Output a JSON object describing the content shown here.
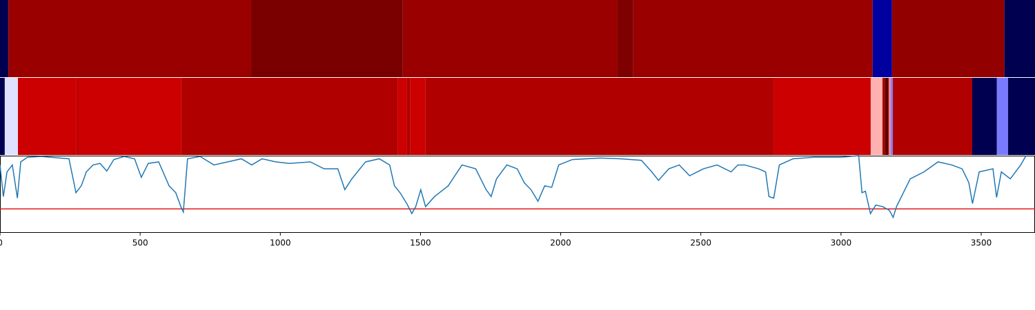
{
  "chart_data": [
    {
      "type": "strip",
      "xlim": [
        0,
        3692
      ],
      "edges": [
        0,
        30,
        896,
        1437,
        2203,
        2259,
        3113,
        3182,
        3583,
        3692
      ],
      "colors": [
        "#000050",
        "#9b0000",
        "#7a0000",
        "#9b0000",
        "#7e0000",
        "#9b0000",
        "#0000a0",
        "#920000",
        "#000050"
      ]
    },
    {
      "type": "strip",
      "xlim": [
        0,
        3692
      ],
      "edges": [
        0,
        17,
        64,
        271,
        283,
        647,
        1418,
        1452,
        1464,
        1518,
        2759,
        3106,
        3148,
        3157,
        3170,
        3177,
        3185,
        3468,
        3556,
        3596,
        3692
      ],
      "colors": [
        "#000050",
        "#e0e0ff",
        "#cc0000",
        "#c00000",
        "#cc0000",
        "#b00000",
        "#cc0000",
        "#b00000",
        "#cc0000",
        "#b00000",
        "#cc0000",
        "#ffb0b0",
        "#a00000",
        "#600000",
        "#ff8080",
        "#8080ff",
        "#b00000",
        "#000050",
        "#7a7aff",
        "#000050"
      ]
    },
    {
      "type": "line",
      "xlim": [
        0,
        3692
      ],
      "ylim": [
        0,
        1.0
      ],
      "xticks": [
        0,
        500,
        1000,
        1500,
        2000,
        2500,
        3000,
        3500
      ],
      "threshold": 0.31,
      "threshold_color": "#e41a1c",
      "color": "#1f77b4",
      "x": [
        0,
        12,
        25,
        44,
        62,
        74,
        98,
        148,
        246,
        271,
        290,
        308,
        332,
        357,
        381,
        406,
        443,
        480,
        504,
        529,
        566,
        603,
        627,
        645,
        654,
        669,
        714,
        763,
        812,
        861,
        898,
        935,
        984,
        1033,
        1107,
        1156,
        1205,
        1230,
        1255,
        1304,
        1353,
        1390,
        1407,
        1427,
        1451,
        1469,
        1483,
        1501,
        1518,
        1550,
        1599,
        1648,
        1697,
        1734,
        1752,
        1771,
        1808,
        1845,
        1870,
        1894,
        1919,
        1943,
        1968,
        1993,
        2042,
        2140,
        2214,
        2288,
        2325,
        2349,
        2386,
        2423,
        2460,
        2509,
        2558,
        2608,
        2632,
        2657,
        2706,
        2731,
        2743,
        2760,
        2780,
        2829,
        2903,
        3001,
        3063,
        3075,
        3087,
        3105,
        3124,
        3149,
        3173,
        3186,
        3198,
        3247,
        3296,
        3346,
        3395,
        3432,
        3456,
        3469,
        3493,
        3542,
        3555,
        3572,
        3604,
        3641,
        3660
      ],
      "values": [
        0.88,
        0.47,
        0.79,
        0.88,
        0.45,
        0.92,
        0.98,
        0.99,
        0.96,
        0.52,
        0.61,
        0.79,
        0.88,
        0.9,
        0.8,
        0.95,
        0.99,
        0.96,
        0.72,
        0.9,
        0.92,
        0.61,
        0.52,
        0.34,
        0.27,
        0.96,
        0.99,
        0.88,
        0.92,
        0.96,
        0.88,
        0.96,
        0.92,
        0.9,
        0.92,
        0.83,
        0.83,
        0.56,
        0.7,
        0.92,
        0.96,
        0.88,
        0.61,
        0.52,
        0.38,
        0.25,
        0.34,
        0.56,
        0.34,
        0.47,
        0.61,
        0.88,
        0.83,
        0.56,
        0.47,
        0.7,
        0.88,
        0.83,
        0.65,
        0.56,
        0.41,
        0.61,
        0.59,
        0.88,
        0.95,
        0.97,
        0.96,
        0.94,
        0.79,
        0.68,
        0.83,
        0.88,
        0.74,
        0.83,
        0.88,
        0.79,
        0.88,
        0.88,
        0.83,
        0.79,
        0.47,
        0.45,
        0.88,
        0.96,
        0.98,
        0.98,
        1.0,
        0.52,
        0.54,
        0.25,
        0.36,
        0.34,
        0.29,
        0.2,
        0.34,
        0.7,
        0.79,
        0.92,
        0.88,
        0.83,
        0.65,
        0.38,
        0.79,
        0.83,
        0.46,
        0.79,
        0.7,
        0.88,
        1.0
      ]
    }
  ]
}
